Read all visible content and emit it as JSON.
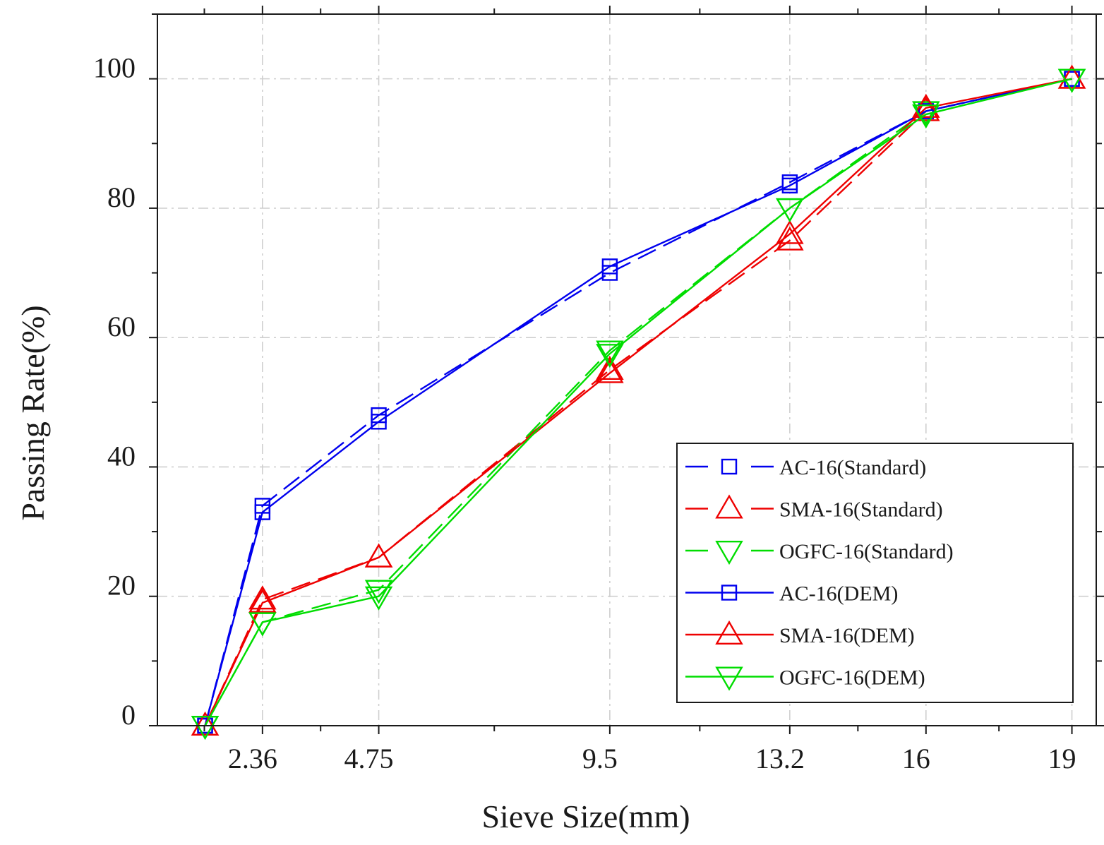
{
  "chart_data": {
    "type": "line",
    "title": "",
    "xlabel": "Sieve Size(mm)",
    "ylabel": "Passing Rate(%)",
    "x_plot_positions": [
      1.18,
      2.36,
      4.75,
      9.5,
      13.2,
      16,
      19
    ],
    "x_tick_values": [
      2.36,
      4.75,
      9.5,
      13.2,
      16,
      19
    ],
    "x_tick_labels": [
      "2.36",
      "4.75",
      "9.5",
      "13.2",
      "16",
      "19"
    ],
    "xlim": [
      0.2,
      19.5
    ],
    "ylim": [
      0,
      110
    ],
    "y_tick_values": [
      0,
      20,
      40,
      60,
      80,
      100
    ],
    "y_tick_labels": [
      "0",
      "20",
      "40",
      "60",
      "80",
      "100"
    ],
    "y_minor_step": 10,
    "grid": true,
    "legend_position": "bottom-right",
    "series": [
      {
        "name": "AC-16(Standard)",
        "color": "#0000ee",
        "line": "dashed",
        "marker": "square",
        "values": [
          0,
          34,
          48,
          70,
          84,
          95,
          100
        ]
      },
      {
        "name": "SMA-16(Standard)",
        "color": "#ee0000",
        "line": "dashed",
        "marker": "triangle-up",
        "values": [
          0,
          19.5,
          26,
          55,
          75,
          95,
          100
        ]
      },
      {
        "name": "OGFC-16(Standard)",
        "color": "#00dd00",
        "line": "dashed",
        "marker": "triangle-down",
        "values": [
          0,
          16,
          21,
          58,
          80,
          95,
          100
        ]
      },
      {
        "name": "AC-16(DEM)",
        "color": "#0000ee",
        "line": "solid",
        "marker": "square",
        "values": [
          0,
          33,
          47,
          71,
          83.5,
          95,
          100
        ]
      },
      {
        "name": "SMA-16(DEM)",
        "color": "#ee0000",
        "line": "solid",
        "marker": "triangle-up",
        "values": [
          0,
          19,
          26,
          54.5,
          76,
          95.5,
          100
        ]
      },
      {
        "name": "OGFC-16(DEM)",
        "color": "#00dd00",
        "line": "solid",
        "marker": "triangle-down",
        "values": [
          0,
          16,
          20,
          57.5,
          80,
          94.5,
          100
        ]
      }
    ]
  }
}
